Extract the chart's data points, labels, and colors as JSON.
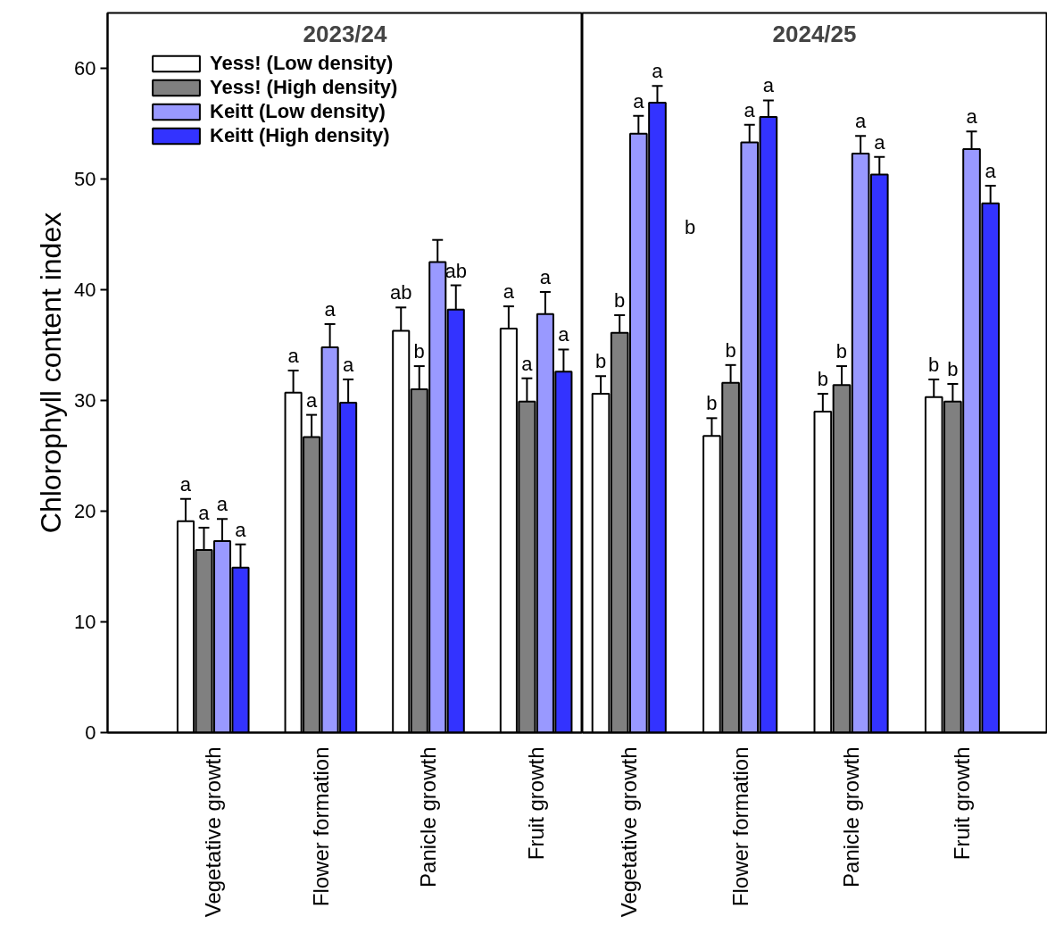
{
  "chart_data": [
    {
      "type": "bar",
      "title": "2023/24",
      "ylabel": "Chlorophyll content index",
      "categories": [
        "Vegetative growth",
        "Flower formation",
        "Panicle growth",
        "Fruit growth"
      ],
      "ylim": [
        0,
        65
      ],
      "yticks": [
        0,
        10,
        20,
        30,
        40,
        50,
        60
      ],
      "grid": false,
      "legend": "top left",
      "series": [
        {
          "name": "Yess! (Low density)",
          "color": "#ffffff",
          "values": [
            19.1,
            30.7,
            36.3,
            36.5
          ],
          "errors": [
            2.0,
            2.0,
            2.1,
            2.0
          ],
          "value_labels": [
            "a",
            "a",
            "ab",
            "a"
          ]
        },
        {
          "name": "Yess! (High density)",
          "color": "#808080",
          "values": [
            16.5,
            26.7,
            31.0,
            29.9
          ],
          "errors": [
            2.0,
            2.0,
            2.1,
            2.1
          ],
          "value_labels": [
            "a",
            "a",
            "b",
            "a"
          ]
        },
        {
          "name": "Keitt (Low density)",
          "color": "#9999ff",
          "values": [
            17.3,
            34.8,
            42.5,
            37.8
          ],
          "errors": [
            2.0,
            2.1,
            2.0,
            2.0
          ],
          "value_labels": [
            "a",
            "a",
            null,
            "a"
          ]
        },
        {
          "name": "Keitt (High density)",
          "color": "#3333ff",
          "values": [
            14.9,
            29.8,
            38.2,
            32.6
          ],
          "errors": [
            2.1,
            2.1,
            2.2,
            2.0
          ],
          "value_labels": [
            "a",
            "a",
            "ab",
            "a"
          ]
        }
      ]
    },
    {
      "type": "bar",
      "title": "2024/25",
      "categories": [
        "Vegetative growth",
        "Flower formation",
        "Panicle growth",
        "Fruit growth"
      ],
      "ylim": [
        0,
        65
      ],
      "tick_labels": "x",
      "grid": false,
      "annotations": [
        "b"
      ],
      "series": [
        {
          "color": "#ffffff",
          "values": [
            30.6,
            26.8,
            29.0,
            30.3
          ],
          "errors": [
            1.6,
            1.6,
            1.6,
            1.6
          ],
          "value_labels": [
            "b",
            "b",
            "b",
            "b"
          ]
        },
        {
          "color": "#808080",
          "values": [
            36.1,
            31.6,
            31.4,
            29.9
          ],
          "errors": [
            1.6,
            1.6,
            1.7,
            1.6
          ],
          "value_labels": [
            "b",
            "b",
            "b",
            "b"
          ]
        },
        {
          "color": "#9999ff",
          "values": [
            54.1,
            53.3,
            52.3,
            52.7
          ],
          "errors": [
            1.6,
            1.6,
            1.6,
            1.6
          ],
          "value_labels": [
            "a",
            "a",
            "a",
            "a"
          ]
        },
        {
          "color": "#3333ff",
          "values": [
            56.9,
            55.6,
            50.4,
            47.8
          ],
          "errors": [
            1.5,
            1.5,
            1.6,
            1.6
          ],
          "value_labels": [
            "a",
            "a",
            "a",
            "a"
          ]
        }
      ]
    }
  ]
}
